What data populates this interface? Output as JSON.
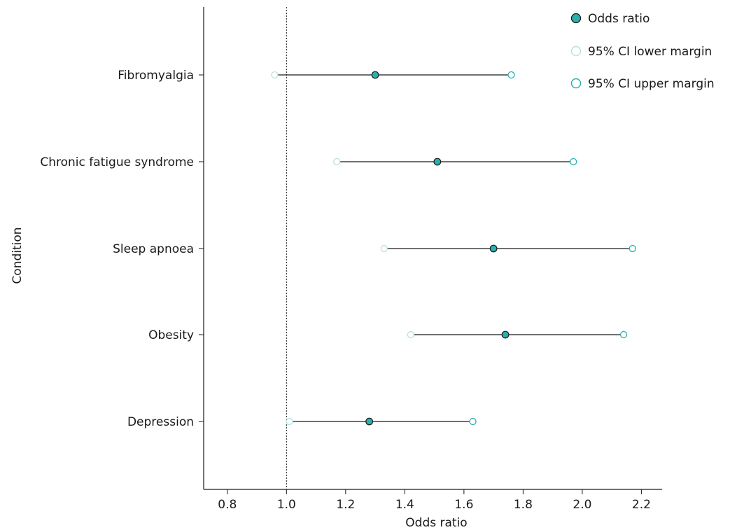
{
  "chart_data": {
    "type": "scatter",
    "title": "",
    "xlabel": "Odds ratio",
    "ylabel": "Condition",
    "xlim": [
      0.72,
      2.27
    ],
    "xticks": [
      "0.8",
      "1.0",
      "1.2",
      "1.4",
      "1.6",
      "1.8",
      "2.0",
      "2.2"
    ],
    "xtick_values": [
      0.8,
      1.0,
      1.2,
      1.4,
      1.6,
      1.8,
      2.0,
      2.2
    ],
    "reference_line_x": 1.0,
    "grid": false,
    "legend_position": "top-right",
    "categories": [
      "Fibromyalgia",
      "Chronic fatigue syndrome",
      "Sleep apnoea",
      "Obesity",
      "Depression"
    ],
    "series": [
      {
        "name": "Odds ratio",
        "values": [
          1.3,
          1.51,
          1.7,
          1.74,
          1.28
        ]
      },
      {
        "name": "95% CI lower margin",
        "values": [
          0.96,
          1.17,
          1.33,
          1.42,
          1.01
        ]
      },
      {
        "name": "95% CI upper margin",
        "values": [
          1.76,
          1.97,
          2.17,
          2.14,
          1.63
        ]
      }
    ]
  },
  "colors": {
    "odds_fill": "#2ab0ad",
    "odds_stroke": "#1a1a1a",
    "lower_stroke": "#b9e1e0",
    "upper_stroke": "#2ab0ad",
    "axis": "#1a1a1a"
  }
}
